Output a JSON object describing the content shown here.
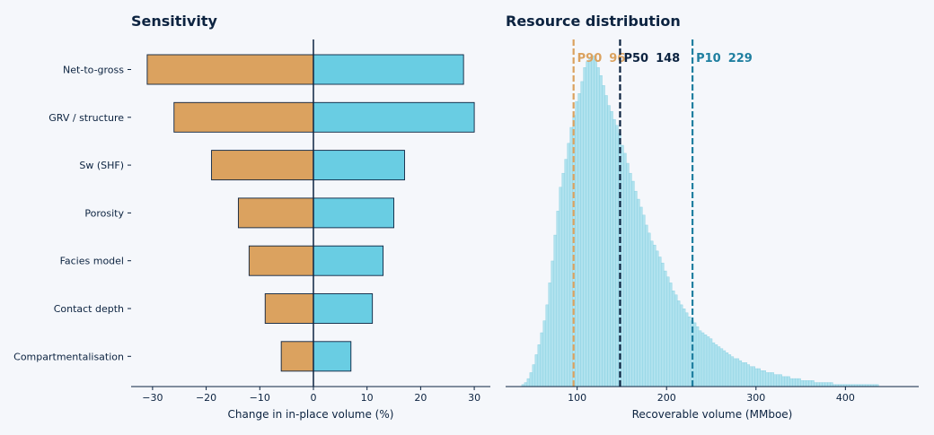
{
  "chart_data": [
    {
      "type": "bar",
      "orientation": "horizontal",
      "subtype": "tornado",
      "title": "Sensitivity",
      "xlabel": "Change in in-place volume  (%)",
      "ylabel": "",
      "xlim": [
        -34,
        33
      ],
      "xticks": [
        -30,
        -20,
        -10,
        0,
        10,
        20,
        30
      ],
      "xtick_labels": [
        "−30",
        "−20",
        "−10",
        "0",
        "10",
        "20",
        "30"
      ],
      "categories": [
        "Net-to-gross",
        "GRV / structure",
        "Sw (SHF)",
        "Porosity",
        "Facies model",
        "Contact depth",
        "Compartmentalisation"
      ],
      "series": [
        {
          "name": "",
          "values": [
            -31,
            -26,
            -19,
            -14,
            -12,
            -9,
            -6
          ],
          "color": "#dba25f"
        },
        {
          "name": "",
          "values": [
            28,
            30,
            17,
            15,
            13,
            11,
            7
          ],
          "color": "#69cde3"
        }
      ],
      "grid": false
    },
    {
      "type": "bar",
      "subtype": "histogram",
      "title": "Resource distribution",
      "xlabel": "Recoverable volume  (MMboe)",
      "ylabel": "",
      "xlim": [
        20,
        482
      ],
      "xticks": [
        100,
        200,
        300,
        400
      ],
      "bin_width": 3,
      "x_start": 35,
      "counts": [
        0,
        1,
        2,
        4,
        7,
        11,
        16,
        21,
        27,
        33,
        41,
        52,
        63,
        76,
        88,
        100,
        107,
        114,
        122,
        130,
        136,
        143,
        147,
        153,
        160,
        163,
        165,
        166,
        164,
        160,
        156,
        151,
        146,
        141,
        138,
        134,
        131,
        127,
        121,
        117,
        112,
        107,
        103,
        98,
        94,
        90,
        86,
        81,
        77,
        73,
        71,
        68,
        65,
        62,
        58,
        55,
        52,
        48,
        46,
        43,
        41,
        39,
        37,
        35,
        33,
        32,
        30,
        28,
        27,
        26,
        25,
        24,
        22,
        21,
        20,
        19,
        18,
        17,
        16,
        15,
        14,
        14,
        13,
        12,
        12,
        11,
        10,
        10,
        9,
        9,
        8,
        8,
        7,
        7,
        7,
        6,
        6,
        6,
        5,
        5,
        5,
        4,
        4,
        4,
        4,
        3,
        3,
        3,
        3,
        3,
        2,
        2,
        2,
        2,
        2,
        2,
        2,
        1,
        1,
        1,
        1,
        1,
        1,
        1,
        1,
        1,
        1,
        1,
        1,
        1,
        1,
        1,
        1,
        1,
        0,
        0,
        0,
        0,
        0,
        0,
        0,
        0,
        0,
        0
      ],
      "color": "#b0e2ee",
      "markers": [
        {
          "name": "P90",
          "value": 96,
          "label": "P90",
          "value_label": "96",
          "color": "#dba25f"
        },
        {
          "name": "P50",
          "value": 148,
          "label": "P50",
          "value_label": "148",
          "color": "#0c2340"
        },
        {
          "name": "P10",
          "value": 229,
          "label": "P10",
          "value_label": "229",
          "color": "#1f7fa0"
        }
      ],
      "grid": false
    }
  ]
}
